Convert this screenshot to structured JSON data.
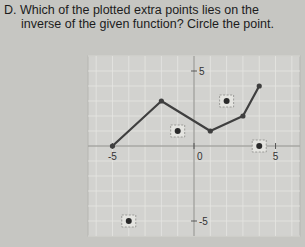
{
  "chart_data": {
    "type": "line",
    "title": "D. Which of the plotted extra points lies on the inverse of the given function? Circle the point.",
    "series": [
      {
        "type": "line",
        "color": "#3f3f3f",
        "marker": "circle",
        "x": [
          -5,
          -2,
          1,
          3,
          4
        ],
        "values": [
          0,
          3,
          1,
          2,
          4
        ]
      },
      {
        "type": "scatter",
        "color": "#2a2a2a",
        "marker": "boxed",
        "x": [
          2,
          -1,
          4,
          -4
        ],
        "values": [
          3,
          1,
          0,
          -5
        ]
      }
    ],
    "xlim": [
      -6.5,
      6.5
    ],
    "ylim": [
      -6,
      6
    ],
    "xticks": [
      -5,
      0,
      5
    ],
    "yticks": [
      -5,
      5
    ],
    "grid": true
  }
}
